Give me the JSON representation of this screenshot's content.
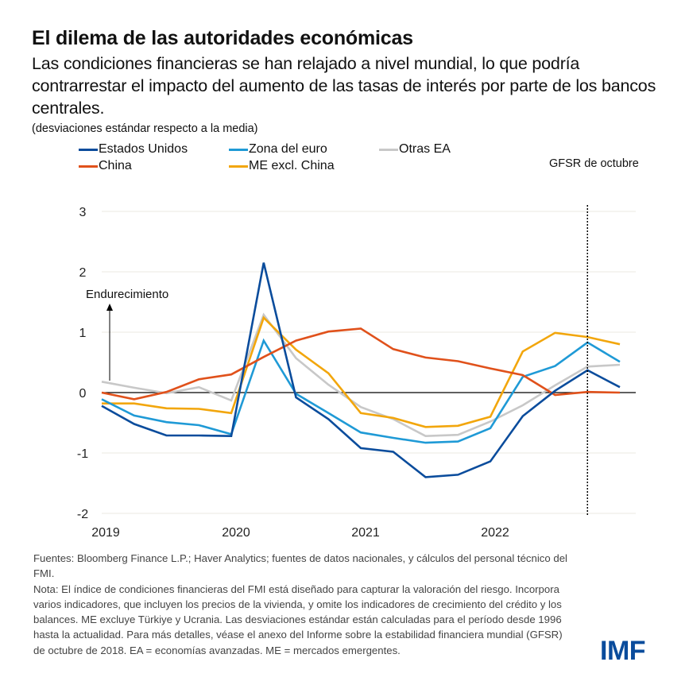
{
  "header": {
    "title": "El dilema de las autoridades económicas",
    "subtitle": "Las condiciones financieras se han relajado a nivel mundial, lo que podría contrarrestar el impacto del aumento de las tasas de interés por parte de los bancos centrales.",
    "units": "(desviaciones estándar respecto a la media)"
  },
  "legend": [
    {
      "name": "Estados Unidos",
      "color": "#0a4c9c"
    },
    {
      "name": "Zona del euro",
      "color": "#1f9ad6"
    },
    {
      "name": "Otras EA",
      "color": "#c8c8c8"
    },
    {
      "name": "China",
      "color": "#e0511b"
    },
    {
      "name": "ME excl. China",
      "color": "#f2a60c"
    }
  ],
  "annotations": {
    "gfsr": "GFSR de octubre",
    "tightening": "Endurecimiento"
  },
  "chart_data": {
    "type": "line",
    "title": "El dilema de las autoridades económicas",
    "xlabel": "",
    "ylabel": "desviaciones estándar respecto a la media",
    "ylim": [
      -2,
      3
    ],
    "yticks": [
      3,
      2,
      1,
      0,
      -1,
      -2
    ],
    "xticks": [
      "2019",
      "2020",
      "2021",
      "2022"
    ],
    "x": [
      "2018Q4",
      "2019Q1",
      "2019Q2",
      "2019Q3",
      "2019Q4",
      "2020Q1",
      "2020Q2",
      "2020Q3",
      "2020Q4",
      "2021Q1",
      "2021Q2",
      "2021Q3",
      "2021Q4",
      "2022Q1",
      "2022Q2",
      "2022Q3",
      "2022Q4"
    ],
    "vertical_marker": {
      "x": "2022Q3",
      "label": "GFSR de octubre",
      "style": "dotted"
    },
    "grid": true,
    "legend_position": "top",
    "series": [
      {
        "name": "Estados Unidos",
        "color": "#0a4c9c",
        "values": [
          -0.22,
          -0.52,
          -0.71,
          -0.71,
          -0.72,
          2.15,
          -0.08,
          -0.44,
          -0.92,
          -0.98,
          -1.4,
          -1.36,
          -1.14,
          -0.39,
          0.03,
          0.37,
          0.09
        ]
      },
      {
        "name": "Zona del euro",
        "color": "#1f9ad6",
        "values": [
          -0.11,
          -0.38,
          -0.49,
          -0.54,
          -0.69,
          0.86,
          -0.02,
          -0.34,
          -0.66,
          -0.75,
          -0.83,
          -0.81,
          -0.59,
          0.26,
          0.44,
          0.83,
          0.51
        ]
      },
      {
        "name": "Otras EA",
        "color": "#c8c8c8",
        "values": [
          0.18,
          0.08,
          -0.01,
          0.09,
          -0.13,
          1.29,
          0.57,
          0.13,
          -0.24,
          -0.44,
          -0.72,
          -0.7,
          -0.48,
          -0.21,
          0.12,
          0.43,
          0.46
        ]
      },
      {
        "name": "China",
        "color": "#e0511b",
        "values": [
          0.0,
          -0.11,
          0.01,
          0.22,
          0.3,
          0.59,
          0.86,
          1.01,
          1.06,
          0.72,
          0.58,
          0.52,
          0.4,
          0.29,
          -0.04,
          0.01,
          0.0
        ]
      },
      {
        "name": "ME excl. China",
        "color": "#f2a60c",
        "values": [
          -0.18,
          -0.18,
          -0.26,
          -0.27,
          -0.34,
          1.24,
          0.71,
          0.32,
          -0.34,
          -0.42,
          -0.57,
          -0.55,
          -0.4,
          0.68,
          0.99,
          0.92,
          0.8
        ]
      }
    ]
  },
  "footer": {
    "sources": "Fuentes: Bloomberg Finance L.P.; Haver Analytics; fuentes de datos nacionales, y cálculos del personal técnico del FMI.",
    "note": "Nota: El índice de condiciones financieras del FMI está diseñado para capturar la valoración del riesgo. Incorpora varios indicadores, que incluyen los precios de la vivienda, y omite los indicadores de crecimiento del crédito y los balances. ME excluye Türkiye y Ucrania. Las desviaciones estándar están calculadas para el período desde 1996 hasta la actualidad. Para más detalles, véase el anexo del Informe sobre la estabilidad financiera mundial (GFSR) de octubre de 2018. EA = economías avanzadas. ME = mercados emergentes.",
    "logo": "IMF"
  }
}
